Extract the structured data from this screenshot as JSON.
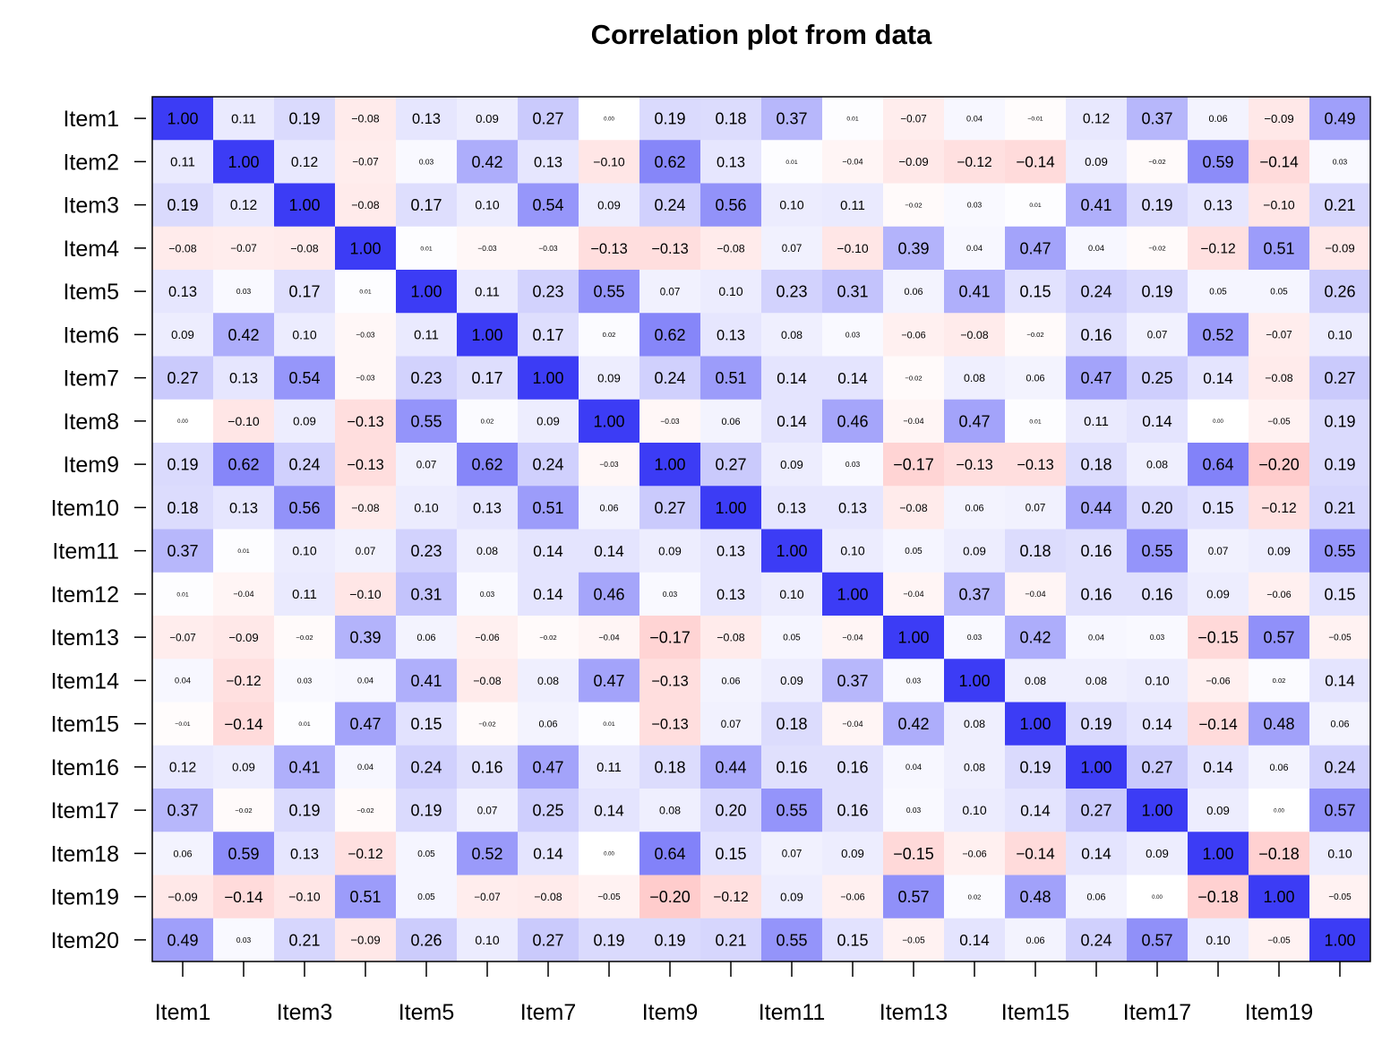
{
  "chart_data": {
    "type": "heatmap",
    "title": "Correlation plot from data",
    "xlabel": "",
    "ylabel": "",
    "labels": [
      "Item1",
      "Item2",
      "Item3",
      "Item4",
      "Item5",
      "Item6",
      "Item7",
      "Item8",
      "Item9",
      "Item10",
      "Item11",
      "Item12",
      "Item13",
      "Item14",
      "Item15",
      "Item16",
      "Item17",
      "Item18",
      "Item19",
      "Item20"
    ],
    "x_tick_labels": [
      "Item1",
      "Item3",
      "Item5",
      "Item7",
      "Item9",
      "Item11",
      "Item13",
      "Item15",
      "Item17",
      "Item19"
    ],
    "value_range": [
      -1,
      1
    ],
    "colors": {
      "positive": "#3c3cf5",
      "zero": "#ffffff",
      "negative": "#ff0000"
    },
    "values": [
      [
        1.0,
        0.11,
        0.19,
        -0.08,
        0.13,
        0.09,
        0.27,
        0.0,
        0.19,
        0.18,
        0.37,
        0.01,
        -0.07,
        0.04,
        -0.01,
        0.12,
        0.37,
        0.06,
        -0.09,
        0.49
      ],
      [
        0.11,
        1.0,
        0.12,
        -0.07,
        0.03,
        0.42,
        0.13,
        -0.1,
        0.62,
        0.13,
        0.01,
        -0.04,
        -0.09,
        -0.12,
        -0.14,
        0.09,
        -0.02,
        0.59,
        -0.14,
        0.03
      ],
      [
        0.19,
        0.12,
        1.0,
        -0.08,
        0.17,
        0.1,
        0.54,
        0.09,
        0.24,
        0.56,
        0.1,
        0.11,
        -0.02,
        0.03,
        0.01,
        0.41,
        0.19,
        0.13,
        -0.1,
        0.21
      ],
      [
        -0.08,
        -0.07,
        -0.08,
        1.0,
        0.01,
        -0.03,
        -0.03,
        -0.13,
        -0.13,
        -0.08,
        0.07,
        -0.1,
        0.39,
        0.04,
        0.47,
        0.04,
        -0.02,
        -0.12,
        0.51,
        -0.09
      ],
      [
        0.13,
        0.03,
        0.17,
        0.01,
        1.0,
        0.11,
        0.23,
        0.55,
        0.07,
        0.1,
        0.23,
        0.31,
        0.06,
        0.41,
        0.15,
        0.24,
        0.19,
        0.05,
        0.05,
        0.26
      ],
      [
        0.09,
        0.42,
        0.1,
        -0.03,
        0.11,
        1.0,
        0.17,
        0.02,
        0.62,
        0.13,
        0.08,
        0.03,
        -0.06,
        -0.08,
        -0.02,
        0.16,
        0.07,
        0.52,
        -0.07,
        0.1
      ],
      [
        0.27,
        0.13,
        0.54,
        -0.03,
        0.23,
        0.17,
        1.0,
        0.09,
        0.24,
        0.51,
        0.14,
        0.14,
        -0.02,
        0.08,
        0.06,
        0.47,
        0.25,
        0.14,
        -0.08,
        0.27
      ],
      [
        0.0,
        -0.1,
        0.09,
        -0.13,
        0.55,
        0.02,
        0.09,
        1.0,
        -0.03,
        0.06,
        0.14,
        0.46,
        -0.04,
        0.47,
        0.01,
        0.11,
        0.14,
        0.0,
        -0.05,
        0.19
      ],
      [
        0.19,
        0.62,
        0.24,
        -0.13,
        0.07,
        0.62,
        0.24,
        -0.03,
        1.0,
        0.27,
        0.09,
        0.03,
        -0.17,
        -0.13,
        -0.13,
        0.18,
        0.08,
        0.64,
        -0.2,
        0.19
      ],
      [
        0.18,
        0.13,
        0.56,
        -0.08,
        0.1,
        0.13,
        0.51,
        0.06,
        0.27,
        1.0,
        0.13,
        0.13,
        -0.08,
        0.06,
        0.07,
        0.44,
        0.2,
        0.15,
        -0.12,
        0.21
      ],
      [
        0.37,
        0.01,
        0.1,
        0.07,
        0.23,
        0.08,
        0.14,
        0.14,
        0.09,
        0.13,
        1.0,
        0.1,
        0.05,
        0.09,
        0.18,
        0.16,
        0.55,
        0.07,
        0.09,
        0.55
      ],
      [
        0.01,
        -0.04,
        0.11,
        -0.1,
        0.31,
        0.03,
        0.14,
        0.46,
        0.03,
        0.13,
        0.1,
        1.0,
        -0.04,
        0.37,
        -0.04,
        0.16,
        0.16,
        0.09,
        -0.06,
        0.15
      ],
      [
        -0.07,
        -0.09,
        -0.02,
        0.39,
        0.06,
        -0.06,
        -0.02,
        -0.04,
        -0.17,
        -0.08,
        0.05,
        -0.04,
        1.0,
        0.03,
        0.42,
        0.04,
        0.03,
        -0.15,
        0.57,
        -0.05
      ],
      [
        0.04,
        -0.12,
        0.03,
        0.04,
        0.41,
        -0.08,
        0.08,
        0.47,
        -0.13,
        0.06,
        0.09,
        0.37,
        0.03,
        1.0,
        0.08,
        0.08,
        0.1,
        -0.06,
        0.02,
        0.14
      ],
      [
        -0.01,
        -0.14,
        0.01,
        0.47,
        0.15,
        -0.02,
        0.06,
        0.01,
        -0.13,
        0.07,
        0.18,
        -0.04,
        0.42,
        0.08,
        1.0,
        0.19,
        0.14,
        -0.14,
        0.48,
        0.06
      ],
      [
        0.12,
        0.09,
        0.41,
        0.04,
        0.24,
        0.16,
        0.47,
        0.11,
        0.18,
        0.44,
        0.16,
        0.16,
        0.04,
        0.08,
        0.19,
        1.0,
        0.27,
        0.14,
        0.06,
        0.24
      ],
      [
        0.37,
        -0.02,
        0.19,
        -0.02,
        0.19,
        0.07,
        0.25,
        0.14,
        0.08,
        0.2,
        0.55,
        0.16,
        0.03,
        0.1,
        0.14,
        0.27,
        1.0,
        0.09,
        0.0,
        0.57
      ],
      [
        0.06,
        0.59,
        0.13,
        -0.12,
        0.05,
        0.52,
        0.14,
        0.0,
        0.64,
        0.15,
        0.07,
        0.09,
        -0.15,
        -0.06,
        -0.14,
        0.14,
        0.09,
        1.0,
        -0.18,
        0.1
      ],
      [
        -0.09,
        -0.14,
        -0.1,
        0.51,
        0.05,
        -0.07,
        -0.08,
        -0.05,
        -0.2,
        -0.12,
        0.09,
        -0.06,
        0.57,
        0.02,
        0.48,
        0.06,
        0.0,
        -0.18,
        1.0,
        -0.05
      ],
      [
        0.49,
        0.03,
        0.21,
        -0.09,
        0.26,
        0.1,
        0.27,
        0.19,
        0.19,
        0.21,
        0.55,
        0.15,
        -0.05,
        0.14,
        0.06,
        0.24,
        0.57,
        0.1,
        -0.05,
        1.0
      ]
    ],
    "grid": false,
    "legend": "none"
  }
}
